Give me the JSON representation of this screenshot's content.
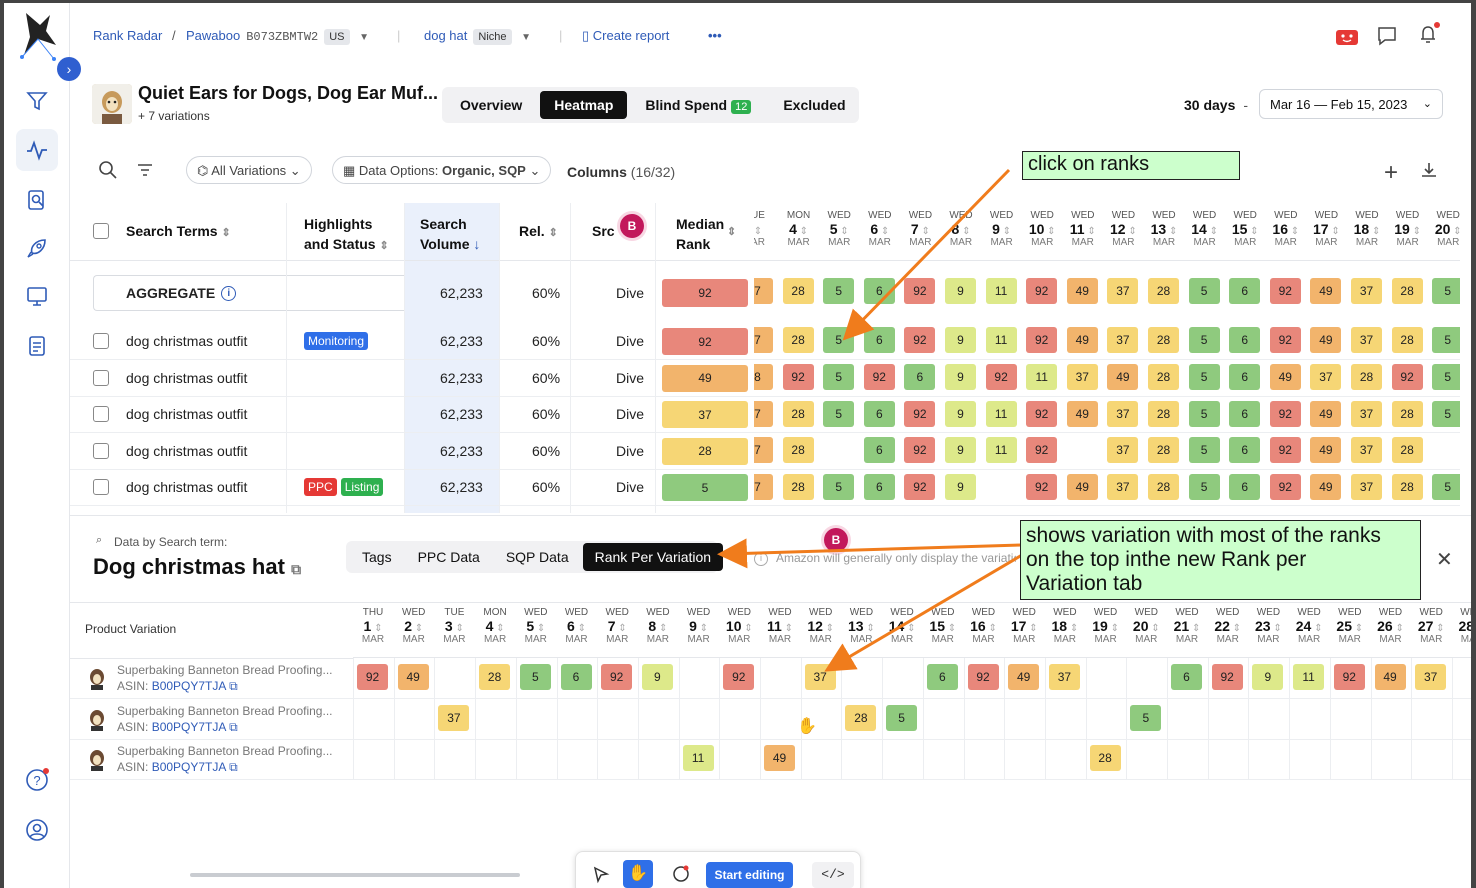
{
  "breadcrumb": {
    "app": "Rank Radar",
    "brand": "Pawaboo",
    "asin": "B073ZBMTW2",
    "marketplace": "US",
    "keyword": "dog hat",
    "keyword_tag": "Niche",
    "create_report": "Create report",
    "more": "•••"
  },
  "product": {
    "title": "Quiet Ears for Dogs, Dog Ear Muf...",
    "variations": "+ 7 variations"
  },
  "tabs": [
    "Overview",
    "Heatmap",
    "Blind Spend",
    "Excluded"
  ],
  "blind_spend_count": "12",
  "range": {
    "days": "30 days",
    "sep": "-",
    "dates": "Mar 16 — Feb 15, 2023"
  },
  "toolbar": {
    "variations": "All Variations",
    "data_options_label": "Data Options:",
    "data_options_value": "Organic, SQP",
    "columns_label": "Columns",
    "columns_count": "(16/32)"
  },
  "table": {
    "headers": {
      "search_terms": "Search Terms",
      "highlights_1": "Highlights",
      "highlights_2": "and Status",
      "volume_1": "Search",
      "volume_2": "Volume",
      "rel": "Rel.",
      "src": "Src",
      "median_1": "Median",
      "median_2": "Rank"
    },
    "avatar_letter": "B",
    "aggregate": {
      "label": "AGGREGATE",
      "volume": "62,233",
      "rel": "60%",
      "src": "Dive",
      "median": "92"
    },
    "rows": [
      {
        "term": "dog christmas outfit",
        "status": [
          "Monitoring"
        ],
        "volume": "62,233",
        "rel": "60%",
        "src": "Dive",
        "median": "92"
      },
      {
        "term": "dog christmas outfit",
        "status": [],
        "volume": "62,233",
        "rel": "60%",
        "src": "Dive",
        "median": "49"
      },
      {
        "term": "dog christmas outfit",
        "status": [],
        "volume": "62,233",
        "rel": "60%",
        "src": "Dive",
        "median": "37"
      },
      {
        "term": "dog christmas outfit",
        "status": [],
        "volume": "62,233",
        "rel": "60%",
        "src": "Dive",
        "median": "28"
      },
      {
        "term": "dog christmas outfit",
        "status": [
          "PPC",
          "Listing"
        ],
        "volume": "62,233",
        "rel": "60%",
        "src": "Dive",
        "median": "5"
      }
    ],
    "dates": [
      {
        "w": "UE",
        "d": "",
        "m": "AR"
      },
      {
        "w": "MON",
        "d": "4",
        "m": "MAR"
      },
      {
        "w": "WED",
        "d": "5",
        "m": "MAR"
      },
      {
        "w": "WED",
        "d": "6",
        "m": "MAR"
      },
      {
        "w": "WED",
        "d": "7",
        "m": "MAR"
      },
      {
        "w": "WED",
        "d": "8",
        "m": "MAR"
      },
      {
        "w": "WED",
        "d": "9",
        "m": "MAR"
      },
      {
        "w": "WED",
        "d": "10",
        "m": "MAR"
      },
      {
        "w": "WED",
        "d": "11",
        "m": "MAR"
      },
      {
        "w": "WED",
        "d": "12",
        "m": "MAR"
      },
      {
        "w": "WED",
        "d": "13",
        "m": "MAR"
      },
      {
        "w": "WED",
        "d": "14",
        "m": "MAR"
      },
      {
        "w": "WED",
        "d": "15",
        "m": "MAR"
      },
      {
        "w": "WED",
        "d": "16",
        "m": "MAR"
      },
      {
        "w": "WED",
        "d": "17",
        "m": "MAR"
      },
      {
        "w": "WED",
        "d": "18",
        "m": "MAR"
      },
      {
        "w": "WED",
        "d": "19",
        "m": "MAR"
      },
      {
        "w": "WED",
        "d": "20",
        "m": "MAR"
      }
    ],
    "ranks": [
      [
        "7",
        "28",
        "5",
        "6",
        "92",
        "9",
        "11",
        "92",
        "49",
        "37",
        "28",
        "5",
        "6",
        "92",
        "49",
        "37",
        "28",
        "5"
      ],
      [
        "7",
        "28",
        "5",
        "6",
        "92",
        "9",
        "11",
        "92",
        "49",
        "37",
        "28",
        "5",
        "6",
        "92",
        "49",
        "37",
        "28",
        "5"
      ],
      [
        "8",
        "92",
        "5",
        "92",
        "6",
        "9",
        "92",
        "11",
        "37",
        "49",
        "28",
        "5",
        "6",
        "49",
        "37",
        "28",
        "92",
        "5"
      ],
      [
        "7",
        "28",
        "5",
        "6",
        "92",
        "9",
        "11",
        "92",
        "49",
        "37",
        "28",
        "5",
        "6",
        "92",
        "49",
        "37",
        "28",
        "5"
      ],
      [
        "7",
        "28",
        "",
        "6",
        "92",
        "9",
        "11",
        "92",
        "",
        "37",
        "28",
        "5",
        "6",
        "92",
        "49",
        "37",
        "28",
        ""
      ],
      [
        "7",
        "28",
        "5",
        "6",
        "92",
        "9",
        "",
        "92",
        "49",
        "37",
        "28",
        "5",
        "6",
        "92",
        "49",
        "37",
        "28",
        "5"
      ]
    ]
  },
  "lower": {
    "caption": "Data by Search term:",
    "title": "Dog christmas hat",
    "tabs": [
      "Tags",
      "PPC Data",
      "SQP Data",
      "Rank Per Variation"
    ],
    "note": "Amazon will generally only display the variation",
    "close": "✕",
    "col_header": "Product Variation",
    "dates": [
      {
        "w": "THU",
        "d": "1",
        "m": "MAR"
      },
      {
        "w": "WED",
        "d": "2",
        "m": "MAR"
      },
      {
        "w": "TUE",
        "d": "3",
        "m": "MAR"
      },
      {
        "w": "MON",
        "d": "4",
        "m": "MAR"
      },
      {
        "w": "WED",
        "d": "5",
        "m": "MAR"
      },
      {
        "w": "WED",
        "d": "6",
        "m": "MAR"
      },
      {
        "w": "WED",
        "d": "7",
        "m": "MAR"
      },
      {
        "w": "WED",
        "d": "8",
        "m": "MAR"
      },
      {
        "w": "WED",
        "d": "9",
        "m": "MAR"
      },
      {
        "w": "WED",
        "d": "10",
        "m": "MAR"
      },
      {
        "w": "WED",
        "d": "11",
        "m": "MAR"
      },
      {
        "w": "WED",
        "d": "12",
        "m": "MAR"
      },
      {
        "w": "WED",
        "d": "13",
        "m": "MAR"
      },
      {
        "w": "WED",
        "d": "14",
        "m": "MAR"
      },
      {
        "w": "WED",
        "d": "15",
        "m": "MAR"
      },
      {
        "w": "WED",
        "d": "16",
        "m": "MAR"
      },
      {
        "w": "WED",
        "d": "17",
        "m": "MAR"
      },
      {
        "w": "WED",
        "d": "18",
        "m": "MAR"
      },
      {
        "w": "WED",
        "d": "19",
        "m": "MAR"
      },
      {
        "w": "WED",
        "d": "20",
        "m": "MAR"
      },
      {
        "w": "WED",
        "d": "21",
        "m": "MAR"
      },
      {
        "w": "WED",
        "d": "22",
        "m": "MAR"
      },
      {
        "w": "WED",
        "d": "23",
        "m": "MAR"
      },
      {
        "w": "WED",
        "d": "24",
        "m": "MAR"
      },
      {
        "w": "WED",
        "d": "25",
        "m": "MAR"
      },
      {
        "w": "WED",
        "d": "26",
        "m": "MAR"
      },
      {
        "w": "WED",
        "d": "27",
        "m": "MAR"
      },
      {
        "w": "WED",
        "d": "28",
        "m": "MAR"
      }
    ],
    "rows": [
      {
        "name": "Superbaking Banneton Bread Proofing...",
        "asin_label": "ASIN:",
        "asin": "B00PQY7TJA",
        "ranks": [
          "92",
          "49",
          "",
          "28",
          "5",
          "6",
          "92",
          "9",
          "",
          "92",
          "",
          "37",
          "",
          "",
          "6",
          "92",
          "49",
          "37",
          "",
          "",
          "6",
          "92",
          "9",
          "11",
          "92",
          "49",
          "37",
          ""
        ]
      },
      {
        "name": "Superbaking Banneton Bread Proofing...",
        "asin_label": "ASIN:",
        "asin": "B00PQY7TJA",
        "ranks": [
          "",
          "",
          "37",
          "",
          "",
          "",
          "",
          "",
          "",
          "",
          "",
          "",
          "28",
          "5",
          "",
          "",
          "",
          "",
          "",
          "5",
          "",
          "",
          "",
          "",
          "",
          "",
          "",
          ""
        ]
      },
      {
        "name": "Superbaking Banneton Bread Proofing...",
        "asin_label": "ASIN:",
        "asin": "B00PQY7TJA",
        "ranks": [
          "",
          "",
          "",
          "",
          "",
          "",
          "",
          "",
          "11",
          "",
          "49",
          "",
          "",
          "",
          "",
          "",
          "",
          "",
          "28",
          "",
          "",
          "",
          "",
          "",
          "",
          "",
          "",
          ""
        ]
      }
    ]
  },
  "bottom_toolbar": {
    "start_editing": "Start editing"
  },
  "annotations": {
    "a1": "click on ranks",
    "a2_l1": "shows variation with most of the ranks",
    "a2_l2": "on the top inthe new Rank per",
    "a2_l3": "Variation tab"
  },
  "colors": {
    "red": "#e8877b",
    "orange": "#f2b46c",
    "yellow": "#f6d675",
    "lime": "#dde98a",
    "green": "#8fca7e",
    "accent": "#2f5fd0"
  }
}
